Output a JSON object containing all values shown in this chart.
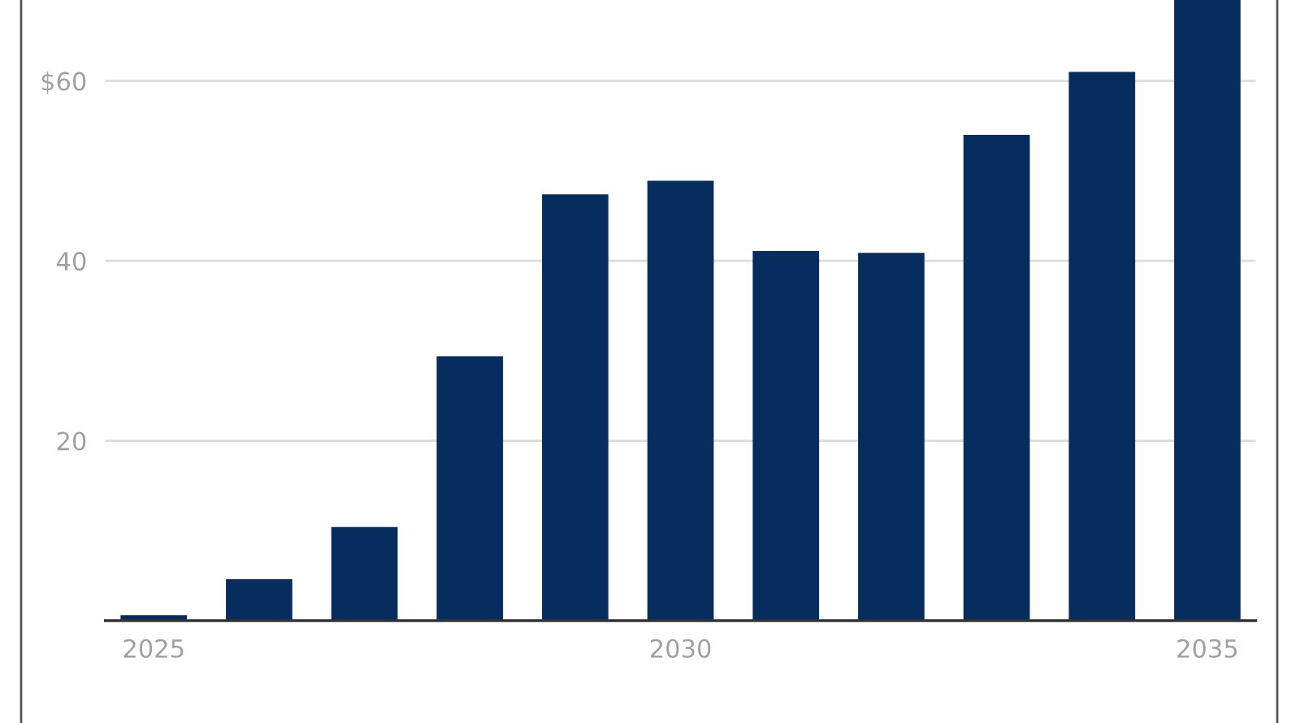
{
  "chart_data": {
    "type": "bar",
    "x": [
      2025,
      2026,
      2027,
      2028,
      2029,
      2030,
      2031,
      2032,
      2033,
      2034,
      2035
    ],
    "values": [
      0.6,
      4.6,
      10.4,
      29.4,
      47.4,
      48.9,
      41.1,
      40.9,
      54.0,
      61.0,
      69.0
    ],
    "color": "#062d5e",
    "xlim": [
      2024.54,
      2035.46
    ],
    "xticks": [
      2025,
      2030,
      2035
    ],
    "ylim": [
      0,
      69
    ],
    "yticks": [
      20,
      40,
      {
        "value": 60,
        "label": "$60"
      }
    ],
    "grid": "y"
  }
}
